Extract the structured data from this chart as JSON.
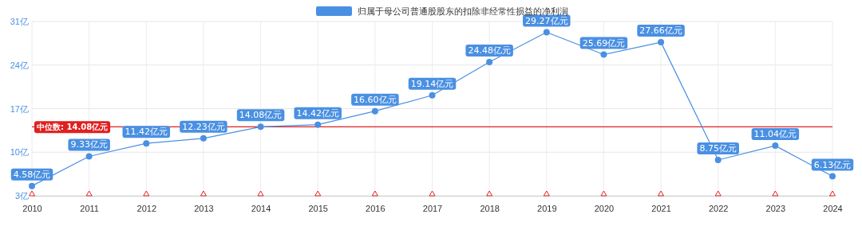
{
  "chart_data": {
    "type": "line",
    "categories": [
      "2010",
      "2011",
      "2012",
      "2013",
      "2014",
      "2015",
      "2016",
      "2017",
      "2018",
      "2019",
      "2020",
      "2021",
      "2022",
      "2023",
      "2024"
    ],
    "series": [
      {
        "name": "归属于母公司普通股股东的扣除非经常性损益的净利润",
        "color": "#4a90e2",
        "values": [
          4.58,
          9.33,
          11.42,
          12.23,
          14.08,
          14.42,
          16.6,
          19.14,
          24.48,
          29.27,
          25.69,
          27.66,
          8.75,
          11.04,
          6.13
        ],
        "value_labels": [
          "4.58亿元",
          "9.33亿元",
          "11.42亿元",
          "12.23亿元",
          "14.08亿元",
          "14.42亿元",
          "16.60亿元",
          "19.14亿元",
          "24.48亿元",
          "29.27亿元",
          "25.69亿元",
          "27.66亿元",
          "8.75亿元",
          "11.04亿元",
          "6.13亿元"
        ]
      }
    ],
    "ylim": [
      3,
      31
    ],
    "yticks": [
      {
        "value": 3,
        "label": "3亿"
      },
      {
        "value": 10,
        "label": "10亿"
      },
      {
        "value": 17,
        "label": "17亿"
      },
      {
        "value": 24,
        "label": "24亿"
      },
      {
        "value": 31,
        "label": "31亿"
      }
    ],
    "ref_lines": [
      {
        "axis": "y",
        "value": 14.08,
        "label": "中位数: 14.08亿元",
        "color": "#e02020"
      }
    ],
    "grid": true,
    "legend": "top",
    "marker": "circle",
    "line_style": "solid"
  }
}
